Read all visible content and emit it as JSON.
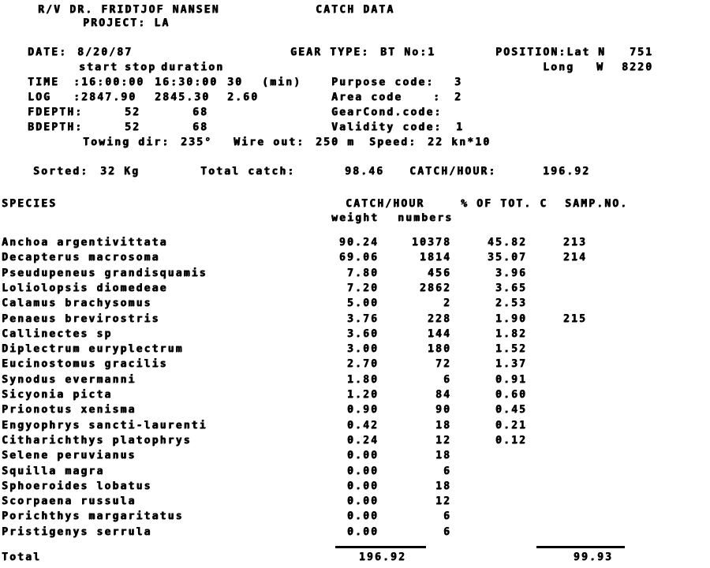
{
  "colors": {
    "ink": "#000000",
    "paper": "#ffffff"
  },
  "header": {
    "vessel": "R/V DR. FRIDTJOF NANSEN",
    "report": "CATCH DATA",
    "project": "PROJECT: LA"
  },
  "station": {
    "date_label": "DATE:",
    "date": "8/20/87",
    "gear_type_label": "GEAR TYPE:",
    "gear_type": "BT No:1",
    "position_label": "POSITION:Lat",
    "lat_hemisphere": "N",
    "lat": "751",
    "long_label": "Long",
    "long_hemisphere": "W",
    "long": "8220",
    "start_header": "start",
    "stop_header": "stop",
    "duration_header": "duration",
    "time_label": "TIME",
    "time_start": ":16:00:00",
    "time_stop": "16:30:00",
    "time_duration": "30",
    "time_unit": "(min)",
    "log_label": "LOG",
    "log_start": ":2847.90",
    "log_stop": "2845.30",
    "log_duration": "2.60",
    "fdepth_label": "FDEPTH:",
    "fdepth_start": "52",
    "fdepth_stop": "68",
    "bdepth_label": "BDEPTH:",
    "bdepth_start": "52",
    "bdepth_stop": "68",
    "purpose_label": "Purpose code:",
    "purpose_code": "3",
    "area_label": "Area code",
    "area_colon": ":",
    "area_code": "2",
    "gearcond_label": "GearCond.code:",
    "gearcond_code": "",
    "validity_label": "Validity code:",
    "validity_code": "1",
    "towing_label": "Towing dir:",
    "towing_dir": "235°",
    "wire_label": "Wire out:",
    "wire_out": "250 m",
    "speed_label": "Speed:",
    "speed": "22 kn*10",
    "sorted_label": "Sorted:",
    "sorted": "32 Kg",
    "total_catch_label": "Total catch:",
    "total_catch": "98.46",
    "catch_hour_label": "CATCH/HOUR:",
    "catch_hour": "196.92"
  },
  "table": {
    "species_header": "SPECIES",
    "catch_hour_header": "CATCH/HOUR",
    "weight_header": "weight",
    "numbers_header": "numbers",
    "pct_header": "% OF TOT. C",
    "samp_header": "SAMP.NO.",
    "rows": [
      {
        "species": "Anchoa argentivittata",
        "weight": "90.24",
        "numbers": "10378",
        "pct": "45.82",
        "samp": "213"
      },
      {
        "species": "Decapterus macrosoma",
        "weight": "69.06",
        "numbers": "1814",
        "pct": "35.07",
        "samp": "214"
      },
      {
        "species": "Pseudupeneus grandisquamis",
        "weight": "7.80",
        "numbers": "456",
        "pct": "3.96",
        "samp": ""
      },
      {
        "species": "Loliolopsis diomedeae",
        "weight": "7.20",
        "numbers": "2862",
        "pct": "3.65",
        "samp": ""
      },
      {
        "species": "Calamus brachysomus",
        "weight": "5.00",
        "numbers": "2",
        "pct": "2.53",
        "samp": ""
      },
      {
        "species": "Penaeus brevirostris",
        "weight": "3.76",
        "numbers": "228",
        "pct": "1.90",
        "samp": "215"
      },
      {
        "species": "Callinectes sp",
        "weight": "3.60",
        "numbers": "144",
        "pct": "1.82",
        "samp": ""
      },
      {
        "species": "Diplectrum euryplectrum",
        "weight": "3.00",
        "numbers": "180",
        "pct": "1.52",
        "samp": ""
      },
      {
        "species": "Eucinostomus gracilis",
        "weight": "2.70",
        "numbers": "72",
        "pct": "1.37",
        "samp": ""
      },
      {
        "species": "Synodus evermanni",
        "weight": "1.80",
        "numbers": "6",
        "pct": "0.91",
        "samp": ""
      },
      {
        "species": "Sicyonia picta",
        "weight": "1.20",
        "numbers": "84",
        "pct": "0.60",
        "samp": ""
      },
      {
        "species": "Prionotus xenisma",
        "weight": "0.90",
        "numbers": "90",
        "pct": "0.45",
        "samp": ""
      },
      {
        "species": "Engyophrys sancti-laurenti",
        "weight": "0.42",
        "numbers": "18",
        "pct": "0.21",
        "samp": ""
      },
      {
        "species": "Citharichthys platophrys",
        "weight": "0.24",
        "numbers": "12",
        "pct": "0.12",
        "samp": ""
      },
      {
        "species": "Selene peruvianus",
        "weight": "0.00",
        "numbers": "18",
        "pct": "",
        "samp": ""
      },
      {
        "species": "Squilla magra",
        "weight": "0.00",
        "numbers": "6",
        "pct": "",
        "samp": ""
      },
      {
        "species": "Sphoeroides lobatus",
        "weight": "0.00",
        "numbers": "18",
        "pct": "",
        "samp": ""
      },
      {
        "species": "Scorpaena russula",
        "weight": "0.00",
        "numbers": "12",
        "pct": "",
        "samp": ""
      },
      {
        "species": "Porichthys margaritatus",
        "weight": "0.00",
        "numbers": "6",
        "pct": "",
        "samp": ""
      },
      {
        "species": "Pristigenys serrula",
        "weight": "0.00",
        "numbers": "6",
        "pct": "",
        "samp": ""
      }
    ],
    "total_label": "Total",
    "total_weight": "196.92",
    "total_pct": "99.93"
  }
}
